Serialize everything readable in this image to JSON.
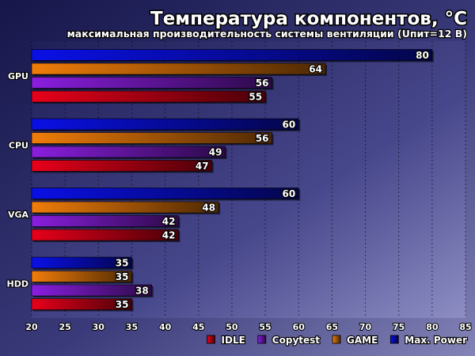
{
  "chart_data": {
    "type": "bar",
    "orientation": "horizontal",
    "title": "Температура компонентов, °С",
    "subtitle": "максимальная производительность системы вентиляции (Uпит=12 В)",
    "xlabel": "",
    "ylabel": "",
    "xlim": [
      20,
      85
    ],
    "xticks": [
      "20",
      "25",
      "30",
      "35",
      "40",
      "45",
      "50",
      "55",
      "60",
      "65",
      "70",
      "75",
      "80",
      "85"
    ],
    "grid": true,
    "legend_position": "bottom-right",
    "categories": [
      "GPU",
      "CPU",
      "VGA",
      "HDD"
    ],
    "series": [
      {
        "name": "IDLE",
        "color": "#e8001a",
        "values": [
          55,
          47,
          42,
          35
        ]
      },
      {
        "name": "Copytest",
        "color": "#8a1ee0",
        "values": [
          56,
          49,
          42,
          38
        ]
      },
      {
        "name": "GAME",
        "color": "#f07d0a",
        "values": [
          64,
          56,
          48,
          35
        ]
      },
      {
        "name": "Max. Power",
        "color": "#0a10e6",
        "values": [
          80,
          60,
          60,
          35
        ]
      }
    ],
    "legend_order": [
      0,
      1,
      2,
      3
    ],
    "bar_order_top_to_bottom": [
      3,
      2,
      1,
      0
    ]
  }
}
